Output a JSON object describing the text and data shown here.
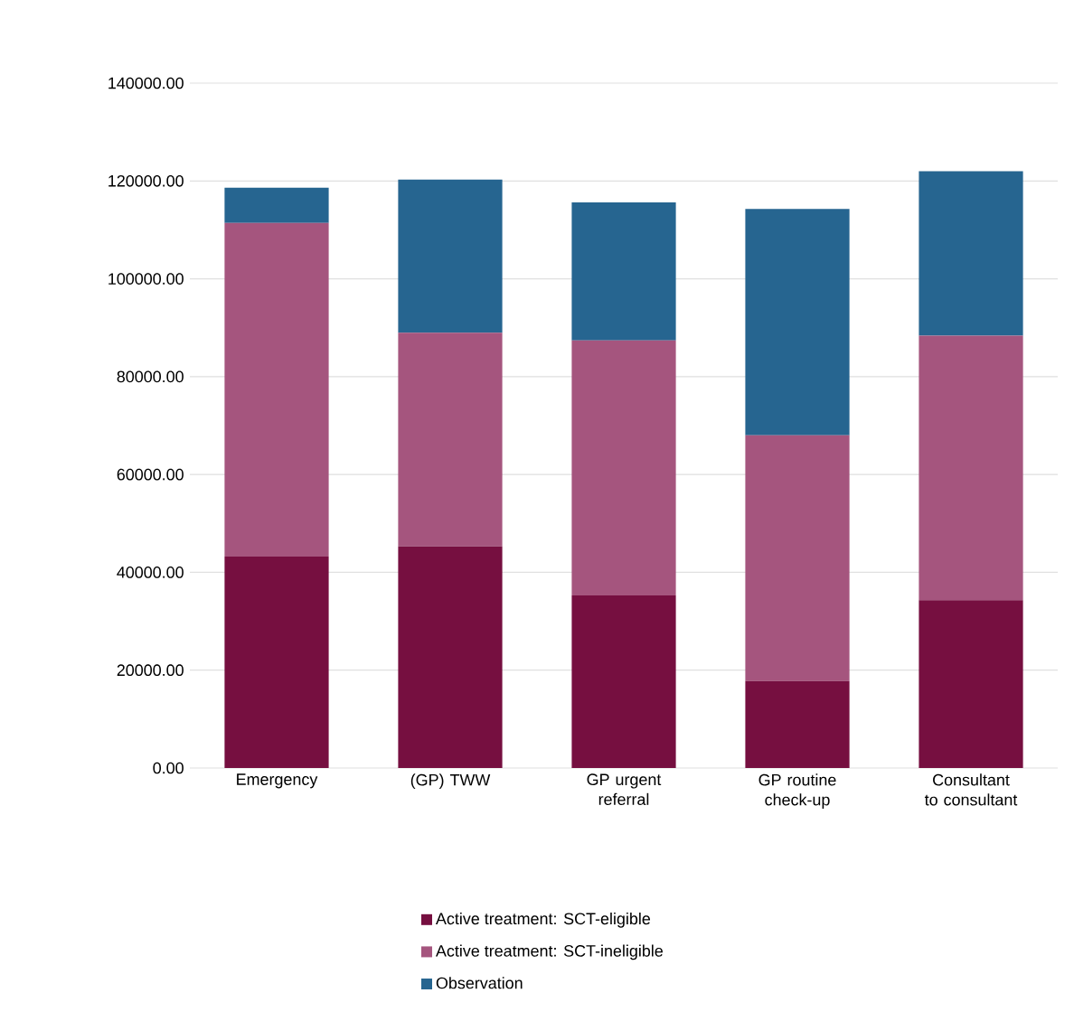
{
  "chart_data": {
    "type": "bar",
    "stacked": true,
    "categories": [
      "Emergency",
      "(GP) TWW",
      "GP urgent referral",
      "GP routine check-up",
      "Consultant to consultant"
    ],
    "series": [
      {
        "name": "Active treatment: SCT-eligible",
        "color": "#760f40",
        "values": [
          43200,
          45300,
          35300,
          17800,
          34300
        ]
      },
      {
        "name": "Active treatment: SCT-ineligible",
        "color": "#a5557e",
        "values": [
          68200,
          43700,
          52100,
          50200,
          54100
        ]
      },
      {
        "name": "Observation",
        "color": "#266590",
        "values": [
          7200,
          31300,
          28200,
          46300,
          33600
        ]
      }
    ],
    "ylim": [
      0,
      140000
    ],
    "yticks": [
      {
        "value": 0,
        "label": "0.00"
      },
      {
        "value": 20000,
        "label": "20000.00"
      },
      {
        "value": 40000,
        "label": "40000.00"
      },
      {
        "value": 60000,
        "label": "60000.00"
      },
      {
        "value": 80000,
        "label": "80000.00"
      },
      {
        "value": 100000,
        "label": "100000.00"
      },
      {
        "value": 120000,
        "label": "120000.00"
      },
      {
        "value": 140000,
        "label": "140000.00"
      }
    ],
    "grid": "y",
    "legend": "bottom"
  }
}
